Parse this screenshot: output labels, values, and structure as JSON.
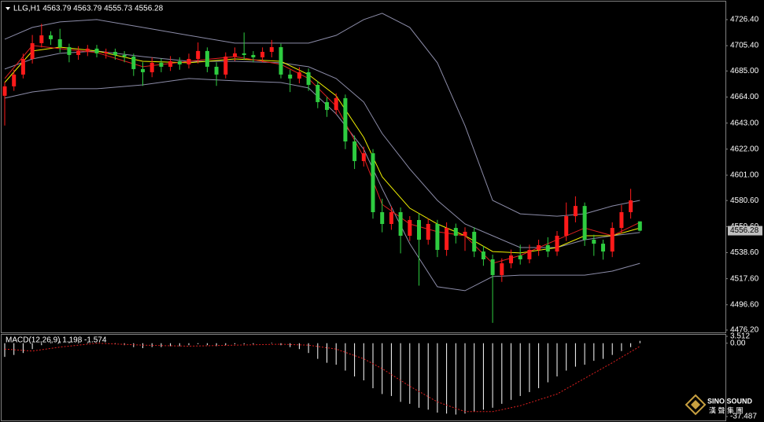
{
  "chart_data": [
    {
      "type": "candlestick",
      "title": "LLG,H1  4563.79 4563.79 4555.73 4556.28",
      "up_color": "#ff1a1a",
      "down_color": "#2ecc40",
      "open": [
        4665.0,
        4672.6,
        4682.1,
        4694.7,
        4707.4,
        4713.7,
        4710.6,
        4704.2,
        4697.9,
        4701.1,
        4703.0,
        4699.2,
        4700.4,
        4697.9,
        4696.6,
        4686.5,
        4684.0,
        4691.6,
        4688.4,
        4692.8,
        4690.3,
        4694.7,
        4701.1,
        4688.4,
        4682.1,
        4696.6,
        4699.2,
        4697.9,
        4696.0,
        4700.4,
        4704.2,
        4682.1,
        4678.9,
        4684.0,
        4673.8,
        4659.9,
        4653.6,
        4663.1,
        4628.2,
        4612.4,
        4618.7,
        4571.2,
        4561.7,
        4571.2,
        4552.2,
        4564.9,
        4549.0,
        4561.7,
        4540.8,
        4558.5,
        4552.2,
        4555.4,
        4539.5,
        4533.2,
        4520.5,
        4530.0,
        4536.3,
        4533.2,
        4540.8,
        4544.6,
        4539.5,
        4552.2,
        4568.0,
        4576.2,
        4549.0,
        4545.8,
        4539.5,
        4558.5,
        4571.2,
        4563.79
      ],
      "high": [
        4676,
        4686,
        4699,
        4714,
        4723,
        4717,
        4719,
        4707,
        4705,
        4706,
        4706,
        4703,
        4703,
        4701,
        4699,
        4692,
        4696,
        4695,
        4697,
        4696,
        4699,
        4708,
        4704,
        4692,
        4700,
        4704,
        4716,
        4701,
        4704,
        4710,
        4707,
        4686,
        4688,
        4687,
        4677,
        4664,
        4667,
        4666,
        4633,
        4624,
        4622,
        4582,
        4576,
        4575,
        4568,
        4570,
        4566,
        4565,
        4563,
        4562,
        4559,
        4559,
        4544,
        4537,
        4534,
        4541,
        4545,
        4545,
        4549,
        4551,
        4556,
        4579,
        4584,
        4579,
        4553,
        4549,
        4563,
        4577,
        4590,
        4563.79
      ],
      "low": [
        4641,
        4669,
        4679,
        4691,
        4704,
        4706,
        4700,
        4692,
        4694,
        4697,
        4696,
        4695,
        4694,
        4692,
        4681,
        4673,
        4680,
        4684,
        4685,
        4686,
        4687,
        4691,
        4684,
        4673,
        4679,
        4693,
        4694,
        4692,
        4692,
        4696,
        4679,
        4668,
        4675,
        4669,
        4655,
        4648,
        4650,
        4622,
        4606,
        4608,
        4566,
        4555,
        4557,
        4538,
        4548,
        4512,
        4545,
        4535,
        4536,
        4546,
        4540,
        4535,
        4528,
        4482,
        4515,
        4526,
        4529,
        4530,
        4536,
        4535,
        4536,
        4548,
        4563,
        4544,
        4536,
        4533,
        4535,
        4554,
        4566,
        4555.73
      ],
      "close": [
        4672.6,
        4682.1,
        4694.7,
        4707.4,
        4713.7,
        4710.6,
        4704.2,
        4697.9,
        4701.1,
        4703.0,
        4699.2,
        4700.4,
        4697.9,
        4696.6,
        4686.5,
        4684.0,
        4691.6,
        4688.4,
        4692.8,
        4690.3,
        4694.7,
        4701.1,
        4688.4,
        4682.1,
        4696.6,
        4699.2,
        4697.9,
        4696.0,
        4700.4,
        4704.2,
        4682.1,
        4678.9,
        4684.0,
        4673.8,
        4659.9,
        4653.6,
        4663.1,
        4628.2,
        4612.4,
        4618.7,
        4571.2,
        4561.7,
        4571.2,
        4552.2,
        4564.9,
        4549.0,
        4561.7,
        4540.8,
        4558.5,
        4552.2,
        4555.4,
        4539.5,
        4533.2,
        4520.5,
        4530.0,
        4536.3,
        4533.2,
        4540.8,
        4544.6,
        4539.5,
        4552.2,
        4568.0,
        4576.2,
        4549.0,
        4545.8,
        4539.5,
        4558.5,
        4571.2,
        4580.7,
        4556.28
      ],
      "series": [
        {
          "color": "#8c8ca8",
          "x": [
            0,
            3,
            6,
            10,
            15,
            20,
            25,
            30,
            33,
            36,
            39,
            41,
            44,
            47,
            50,
            53,
            56,
            60,
            63,
            66,
            69
          ],
          "values": [
            4710.6,
            4720.1,
            4724.5,
            4726.4,
            4720.1,
            4713.7,
            4707.4,
            4707.4,
            4707.4,
            4713.7,
            4726.4,
            4731.5,
            4720.1,
            4691.6,
            4640.9,
            4580.7,
            4569.9,
            4568.0,
            4569.9,
            4576.2,
            4580.7
          ]
        },
        {
          "color": "#8c8ca8",
          "x": [
            0,
            3,
            6,
            10,
            15,
            20,
            25,
            30,
            33,
            36,
            39,
            41,
            44,
            47,
            50,
            53,
            56,
            60,
            63,
            66,
            69
          ],
          "values": [
            4663.1,
            4668.1,
            4670.7,
            4670.7,
            4673.8,
            4678.9,
            4677.0,
            4675.7,
            4671.3,
            4650.4,
            4621.9,
            4590.2,
            4545.8,
            4511.1,
            4507.9,
            4519.3,
            4520.5,
            4520.5,
            4520.5,
            4523.7,
            4530.0
          ]
        },
        {
          "color": "#8c8ca8",
          "x": [
            0,
            3,
            6,
            10,
            15,
            20,
            25,
            30,
            33,
            36,
            39,
            41,
            44,
            47,
            50,
            53,
            56,
            60,
            63,
            66,
            69
          ],
          "values": [
            4686.5,
            4694.7,
            4699.2,
            4701.1,
            4696.6,
            4692.8,
            4692.8,
            4691.6,
            4688.4,
            4678.9,
            4659.9,
            4634.6,
            4606.1,
            4580.7,
            4561.7,
            4552.2,
            4542.7,
            4542.7,
            4549.0,
            4552.2,
            4554.8
          ]
        },
        {
          "color": "#f0f000",
          "x": [
            0,
            3,
            6,
            10,
            15,
            20,
            25,
            30,
            33,
            36,
            39,
            41,
            44,
            47,
            50,
            53,
            56,
            60,
            63,
            66,
            69
          ],
          "values": [
            4675.7,
            4701.1,
            4704.2,
            4701.1,
            4692.8,
            4691.6,
            4694.7,
            4692.8,
            4682.1,
            4665.0,
            4631.4,
            4599.7,
            4574.4,
            4561.7,
            4552.2,
            4539.5,
            4538.3,
            4542.7,
            4552.2,
            4552.2,
            4558.5
          ]
        },
        {
          "color": "#e02020",
          "x": [
            0,
            3,
            6,
            10,
            15,
            20,
            25,
            30,
            33,
            36,
            39,
            41,
            44,
            47,
            50,
            53,
            56,
            60,
            63,
            66,
            69
          ],
          "values": [
            4678.9,
            4705.5,
            4703.0,
            4699.8,
            4688.4,
            4692.8,
            4696.6,
            4690.3,
            4678.9,
            4656.7,
            4615.6,
            4577.5,
            4561.7,
            4555.4,
            4552.2,
            4530.0,
            4536.3,
            4549.0,
            4558.5,
            4552.2,
            4563.0
          ]
        }
      ],
      "ylim": [
        4474.3,
        4740.3
      ],
      "yticks": [
        {
          "value": 4726.4,
          "label": "4726.40"
        },
        {
          "value": 4705.4,
          "label": "4705.40"
        },
        {
          "value": 4685,
          "label": "4685.00"
        },
        {
          "value": 4664,
          "label": "4664.00"
        },
        {
          "value": 4643,
          "label": "4643.00"
        },
        {
          "value": 4622,
          "label": "4622.00"
        },
        {
          "value": 4601,
          "label": "4601.00"
        },
        {
          "value": 4580.6,
          "label": "4580.60"
        },
        {
          "value": 4559.6,
          "label": "4559.60"
        },
        {
          "value": 4538.6,
          "label": "4538.60"
        },
        {
          "value": 4517.6,
          "label": "4517.60"
        },
        {
          "value": 4496.6,
          "label": "4496.60"
        },
        {
          "value": 4476.2,
          "label": "4476.20"
        }
      ]
    },
    {
      "type": "macd",
      "title": "MACD(12,26,9) 1.198 -1.574",
      "color": "#ffffff",
      "values": [
        -7,
        -6,
        -5,
        -3,
        -1,
        0.5,
        1.0,
        0.8,
        0.5,
        0.3,
        0.2,
        0,
        -0.5,
        -1,
        -2,
        -2.5,
        -2,
        -2,
        -1.5,
        -1.5,
        -1,
        -0.5,
        -1,
        -1.5,
        -1,
        -0.5,
        -0.5,
        -0.5,
        0,
        0.3,
        -1,
        -2,
        -3,
        -5,
        -8,
        -10,
        -11,
        -14,
        -17,
        -19,
        -23,
        -26,
        -27,
        -30,
        -31,
        -33,
        -34,
        -35.5,
        -36,
        -36.5,
        -36,
        -35,
        -34,
        -33,
        -31,
        -29,
        -27,
        -25,
        -23,
        -20,
        -17,
        -14,
        -12,
        -11,
        -9,
        -8,
        -6,
        -4,
        -2,
        1.198
      ],
      "signal": {
        "color": "#e02020",
        "x": [
          0,
          3,
          6,
          10,
          15,
          20,
          25,
          30,
          33,
          36,
          39,
          41,
          44,
          47,
          50,
          53,
          56,
          60,
          63,
          66,
          69
        ],
        "values": [
          -3,
          -4,
          -2,
          0,
          -1,
          -1.5,
          -1,
          -0.5,
          -1,
          -3,
          -8,
          -13,
          -22,
          -30,
          -35,
          -35,
          -32,
          -26,
          -18,
          -10,
          -1.574
        ]
      },
      "ylim": [
        -37.487,
        3.512
      ],
      "yticks": [
        3.512,
        {
          "value": 0,
          "label": "0.00"
        },
        -37.487
      ]
    }
  ],
  "watermark": {
    "name": "SINO SOUND",
    "subtitle": "漢 聲 集 團"
  }
}
